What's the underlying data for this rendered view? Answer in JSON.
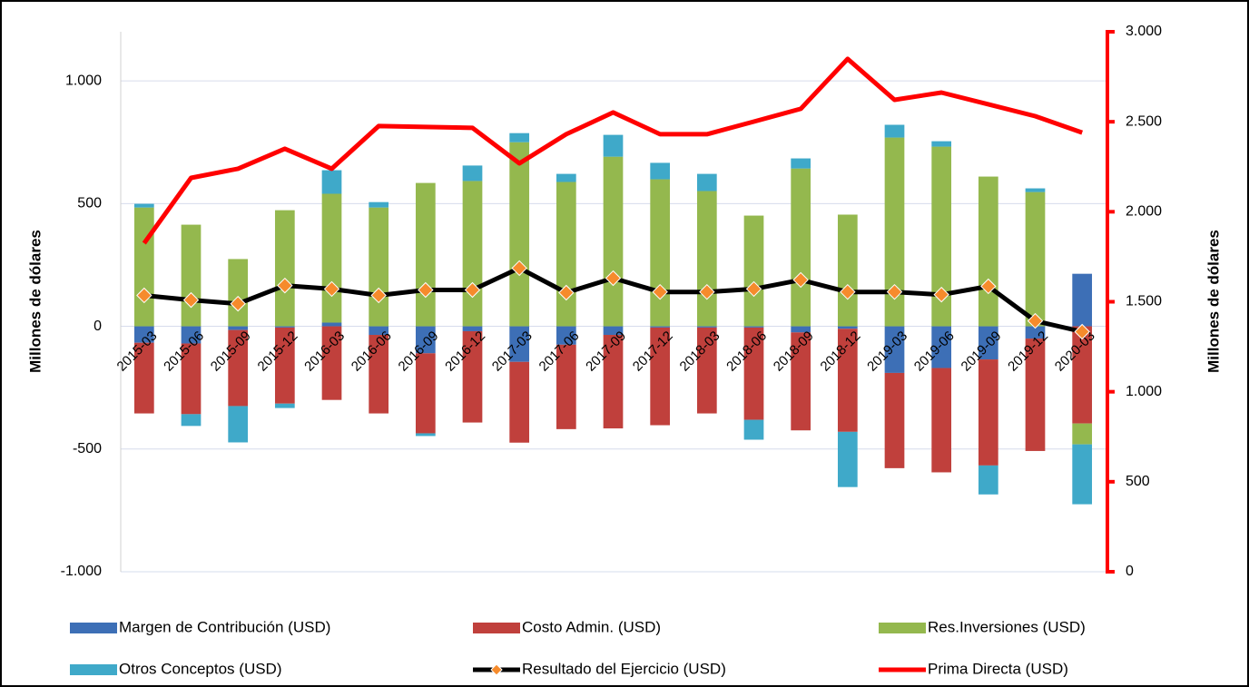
{
  "chart_data": {
    "type": "bar",
    "y_axis_label": "Millones de dólares",
    "y2_axis_label": "Millones de dólares",
    "categories": [
      "2015-03",
      "2015-06",
      "2015-09",
      "2015-12",
      "2016-03",
      "2016-06",
      "2016-09",
      "2016-12",
      "2017-03",
      "2017-06",
      "2017-09",
      "2017-12",
      "2018-03",
      "2018-06",
      "2018-09",
      "2018-12",
      "2019-03",
      "2019-06",
      "2019-09",
      "2019-12",
      "2020-03"
    ],
    "stacked": true,
    "series": [
      {
        "name": "Margen de Contribución (USD)",
        "type": "bar",
        "color": "#3d6fb6",
        "values": [
          -67,
          -70,
          -15,
          -5,
          15,
          -35,
          -110,
          -20,
          -145,
          -75,
          -35,
          -5,
          -5,
          -5,
          -25,
          -10,
          -190,
          -170,
          -135,
          -50,
          214
        ]
      },
      {
        "name": "Costo Admin. (USD)",
        "type": "bar",
        "color": "#c0403c",
        "values": [
          -288,
          -288,
          -310,
          -310,
          -300,
          -320,
          -326,
          -372,
          -329,
          -344,
          -381,
          -398,
          -350,
          -376,
          -399,
          -420,
          -388,
          -425,
          -432,
          -458,
          -396
        ]
      },
      {
        "name": "Res.Inversiones (USD)",
        "type": "bar",
        "color": "#94b84e",
        "values": [
          484,
          414,
          274,
          473,
          525,
          484,
          584,
          592,
          750,
          588,
          691,
          599,
          551,
          451,
          643,
          455,
          769,
          732,
          610,
          547,
          -85
        ]
      },
      {
        "name": "Otros Conceptos (USD)",
        "type": "bar",
        "color": "#3fa9c9",
        "values": [
          15,
          -48,
          -148,
          -18,
          96,
          22,
          -11,
          63,
          37,
          33,
          89,
          67,
          70,
          -81,
          41,
          -225,
          52,
          22,
          -118,
          15,
          -244
        ]
      },
      {
        "name": "Resultado del Ejercicio (USD)",
        "type": "line",
        "color": "#000000",
        "marker_color": "#f68b2c",
        "values": [
          126,
          107,
          92,
          166,
          152,
          126,
          148,
          148,
          237,
          137,
          196,
          140,
          140,
          152,
          189,
          140,
          140,
          129,
          163,
          22,
          -22
        ]
      },
      {
        "name": "Prima Directa (USD)",
        "type": "line",
        "axis": "y2",
        "color": "#ff0000",
        "values": [
          1825,
          2188,
          2239,
          2350,
          2239,
          2476,
          2471,
          2466,
          2269,
          2431,
          2552,
          2431,
          2431,
          2501,
          2572,
          2849,
          2622,
          2662,
          2597,
          2531,
          2440
        ]
      }
    ],
    "ylim": [
      -1000,
      1200
    ],
    "yticks": [
      {
        "value": -1000,
        "label": "-1.000"
      },
      -500,
      0,
      500,
      {
        "value": 1000,
        "label": "1.000"
      }
    ],
    "y2lim": [
      0,
      3000
    ],
    "y2ticks": [
      0,
      500,
      {
        "value": 1000,
        "label": "1.000"
      },
      {
        "value": 1500,
        "label": "1.500"
      },
      {
        "value": 2000,
        "label": "2.000"
      },
      {
        "value": 2500,
        "label": "2.500"
      },
      {
        "value": 3000,
        "label": "3.000"
      }
    ],
    "grid": true,
    "legend": "bottom"
  }
}
